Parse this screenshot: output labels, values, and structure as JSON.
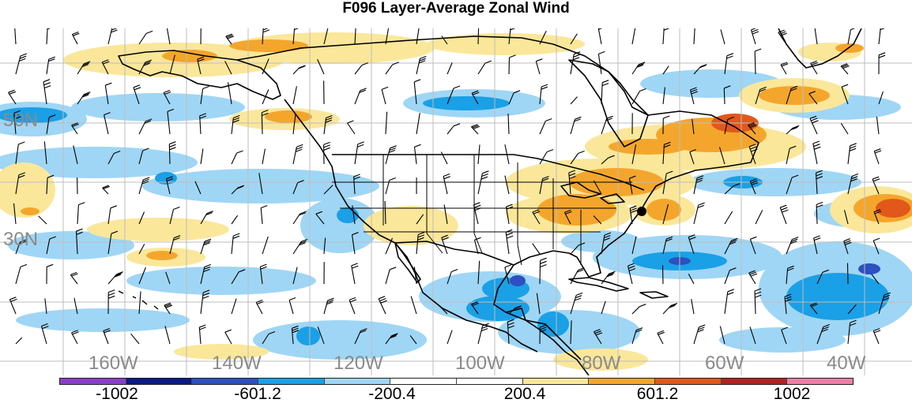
{
  "title": "F096 Layer-Average Zonal Wind",
  "lat_labels": [
    "50N",
    "30N"
  ],
  "lon_labels": [
    "160W",
    "140W",
    "120W",
    "100W",
    "80W",
    "60W",
    "40W"
  ],
  "colorbar": {
    "colors": [
      "#8b3fc8",
      "#0b1b86",
      "#2d4fbf",
      "#1aa0e6",
      "#9fd6f5",
      "#ffffff",
      "#ffffff",
      "#fbe79a",
      "#f4a62c",
      "#e2581b",
      "#b32323",
      "#ee7fa6"
    ],
    "labels": [
      "-1002",
      "-601.2",
      "-200.4",
      "200.4",
      "601.2",
      "1002"
    ]
  },
  "colors": {
    "land_outline": "#000000",
    "grid": "#bdbdbd",
    "light_blue": "#9fd6f5",
    "mid_blue": "#1aa0e6",
    "dark_blue": "#2d4fbf",
    "light_yellow": "#fbe79a",
    "orange": "#f4a62c",
    "red_orange": "#e2581b"
  },
  "station_marker": "filled-circle"
}
